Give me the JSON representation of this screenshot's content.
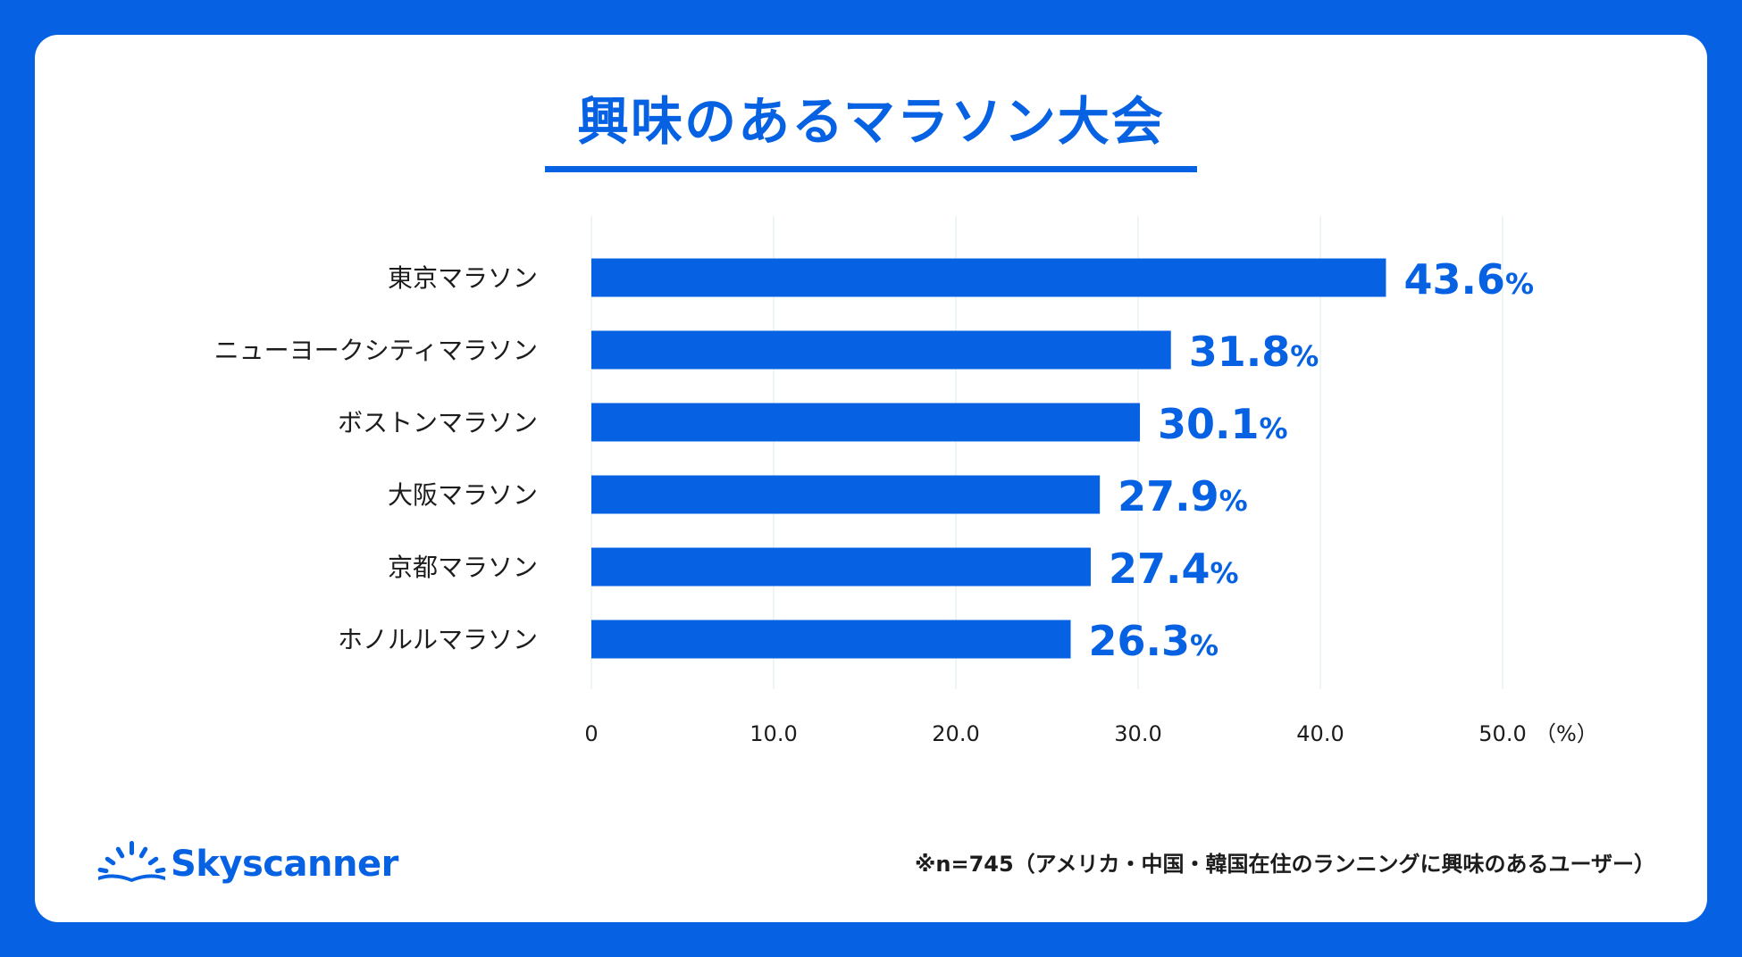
{
  "title": "興味のあるマラソン大会",
  "footnote": "※n=745（アメリカ・中国・韓国在住のランニングに興味のあるユーザー）",
  "brand": {
    "name": "Skyscanner",
    "logo_icon": "sunrise-icon"
  },
  "colors": {
    "accent": "#0662e2",
    "background": "#0662e2",
    "card": "#ffffff",
    "grid": "#e6f4f1",
    "text": "#1c1c1c"
  },
  "chart_data": {
    "type": "bar",
    "orientation": "horizontal",
    "title": "興味のあるマラソン大会",
    "categories": [
      "東京マラソン",
      "ニューヨークシティマラソン",
      "ボストンマラソン",
      "大阪マラソン",
      "京都マラソン",
      "ホノルルマラソン"
    ],
    "values": [
      43.6,
      31.8,
      30.1,
      27.9,
      27.4,
      26.3
    ],
    "value_labels": [
      "43.6",
      "31.8",
      "30.1",
      "27.9",
      "27.4",
      "26.3"
    ],
    "value_suffix": "%",
    "xlim": [
      0,
      50
    ],
    "x_ticks": [
      "0",
      "10.0",
      "20.0",
      "30.0",
      "40.0",
      "50.0"
    ],
    "x_unit_label": "（%）",
    "xlabel": "",
    "ylabel": "",
    "grid": true
  }
}
